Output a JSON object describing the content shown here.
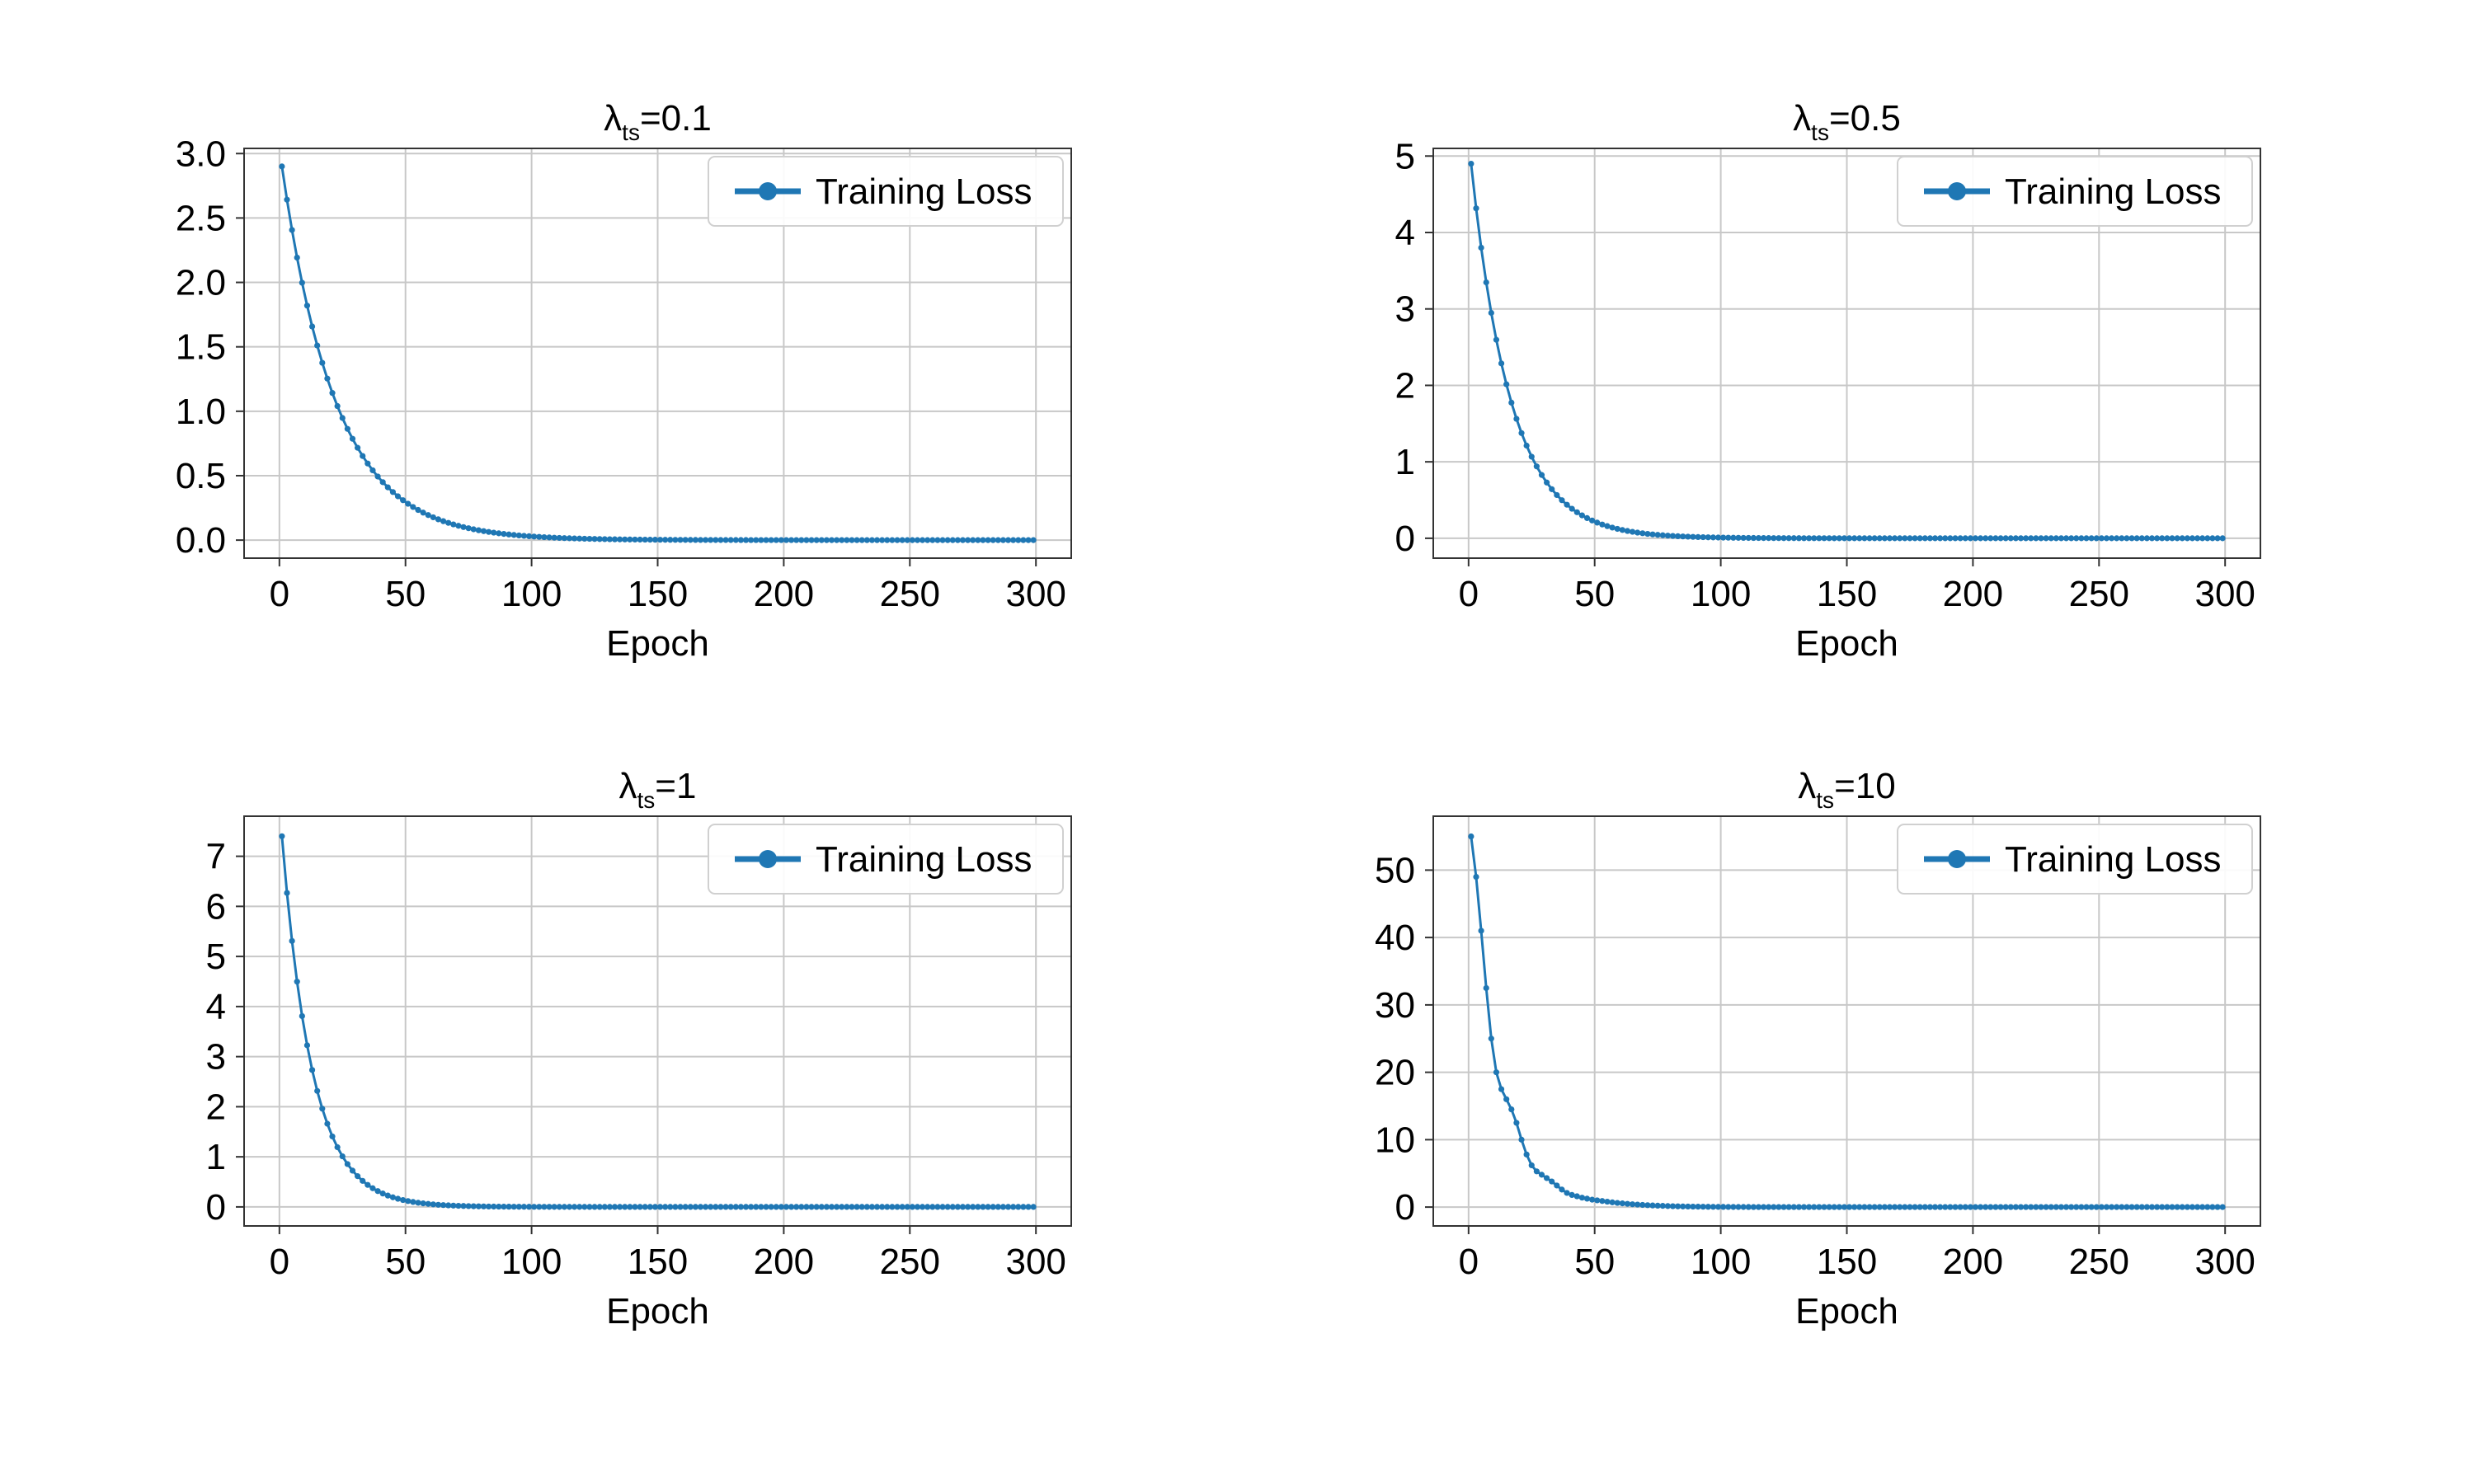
{
  "chart_data": [
    {
      "type": "line",
      "title": {
        "main": "λ",
        "sub": "ts",
        "suffix": "=0.1"
      },
      "xlabel": "Epoch",
      "ylabel": "",
      "xlim": [
        -14,
        314
      ],
      "ylim": [
        -0.14,
        3.04
      ],
      "xticks": [
        0,
        50,
        100,
        150,
        200,
        250,
        300
      ],
      "yticks": [
        0.0,
        0.5,
        1.0,
        1.5,
        2.0,
        2.5,
        3.0
      ],
      "ytick_decimals": 1,
      "grid": true,
      "legend": {
        "position": "top-right",
        "entries": [
          "Training Loss"
        ]
      },
      "series": [
        {
          "name": "Training Loss",
          "color": "#1f77b4",
          "start": 2.9,
          "decay_rate": 0.0466,
          "floor": 0.0,
          "epochs": [
            1,
            300
          ],
          "step": 2
        }
      ]
    },
    {
      "type": "line",
      "title": {
        "main": "λ",
        "sub": "ts",
        "suffix": "=0.5"
      },
      "xlabel": "Epoch",
      "ylabel": "",
      "xlim": [
        -14,
        314
      ],
      "ylim": [
        -0.26,
        5.1
      ],
      "xticks": [
        0,
        50,
        100,
        150,
        200,
        250,
        300
      ],
      "yticks": [
        0,
        1,
        2,
        3,
        4,
        5
      ],
      "ytick_decimals": 0,
      "grid": true,
      "legend": {
        "position": "top-right",
        "entries": [
          "Training Loss"
        ]
      },
      "series": [
        {
          "name": "Training Loss",
          "color": "#1f77b4",
          "start": 4.9,
          "decay_rate": 0.0635,
          "floor": 0.0,
          "epochs": [
            1,
            300
          ],
          "step": 2
        }
      ]
    },
    {
      "type": "line",
      "title": {
        "main": "λ",
        "sub": "ts",
        "suffix": "=1"
      },
      "xlabel": "Epoch",
      "ylabel": "",
      "xlim": [
        -14,
        314
      ],
      "ylim": [
        -0.38,
        7.8
      ],
      "xticks": [
        0,
        50,
        100,
        150,
        200,
        250,
        300
      ],
      "yticks": [
        0,
        1,
        2,
        3,
        4,
        5,
        6,
        7
      ],
      "ytick_decimals": 0,
      "grid": true,
      "legend": {
        "position": "top-right",
        "entries": [
          "Training Loss"
        ]
      },
      "series": [
        {
          "name": "Training Loss",
          "color": "#1f77b4",
          "start": 7.4,
          "decay_rate": 0.083,
          "floor": 0.0,
          "epochs": [
            1,
            300
          ],
          "step": 2
        }
      ]
    },
    {
      "type": "line",
      "title": {
        "main": "λ",
        "sub": "ts",
        "suffix": "=10"
      },
      "xlabel": "Epoch",
      "ylabel": "",
      "xlim": [
        -14,
        314
      ],
      "ylim": [
        -2.8,
        58
      ],
      "xticks": [
        0,
        50,
        100,
        150,
        200,
        250,
        300
      ],
      "yticks": [
        0,
        10,
        20,
        30,
        40,
        50
      ],
      "ytick_decimals": 0,
      "grid": true,
      "legend": {
        "position": "top-right",
        "entries": [
          "Training Loss"
        ]
      },
      "series": [
        {
          "name": "Training Loss",
          "color": "#1f77b4",
          "points": [
            [
              1,
              55
            ],
            [
              3,
              49
            ],
            [
              5,
              41
            ],
            [
              7,
              32.5
            ],
            [
              9,
              25
            ],
            [
              11,
              20
            ],
            [
              13,
              17.5
            ],
            [
              15,
              16
            ],
            [
              17,
              14.5
            ],
            [
              19,
              12.5
            ],
            [
              21,
              10
            ],
            [
              23,
              7.8
            ],
            [
              25,
              6.2
            ],
            [
              27,
              5.3
            ],
            [
              29,
              4.8
            ],
            [
              31,
              4.3
            ],
            [
              33,
              3.8
            ],
            [
              35,
              3.2
            ],
            [
              37,
              2.6
            ],
            [
              39,
              2.1
            ],
            [
              41,
              1.8
            ],
            [
              43,
              1.6
            ],
            [
              45,
              1.4
            ],
            [
              47,
              1.25
            ],
            [
              49,
              1.1
            ],
            [
              51,
              1.0
            ],
            [
              53,
              0.9
            ],
            [
              55,
              0.8
            ],
            [
              57,
              0.7
            ],
            [
              59,
              0.62
            ],
            [
              61,
              0.55
            ],
            [
              63,
              0.48
            ],
            [
              65,
              0.42
            ],
            [
              67,
              0.37
            ],
            [
              69,
              0.32
            ],
            [
              71,
              0.28
            ],
            [
              73,
              0.24
            ],
            [
              75,
              0.21
            ],
            [
              77,
              0.18
            ],
            [
              79,
              0.15
            ],
            [
              81,
              0.13
            ],
            [
              83,
              0.11
            ],
            [
              85,
              0.09
            ],
            [
              87,
              0.08
            ],
            [
              89,
              0.07
            ],
            [
              91,
              0.06
            ],
            [
              93,
              0.05
            ],
            [
              95,
              0.04
            ],
            [
              97,
              0.035
            ],
            [
              99,
              0.03
            ],
            [
              101,
              0.025
            ],
            [
              103,
              0.02
            ],
            [
              105,
              0.018
            ],
            [
              107,
              0.015
            ],
            [
              109,
              0.012
            ],
            [
              111,
              0.01
            ]
          ],
          "tail": {
            "epochs": [
              113,
              300
            ],
            "step": 2,
            "value": 0.005
          }
        }
      ]
    }
  ]
}
